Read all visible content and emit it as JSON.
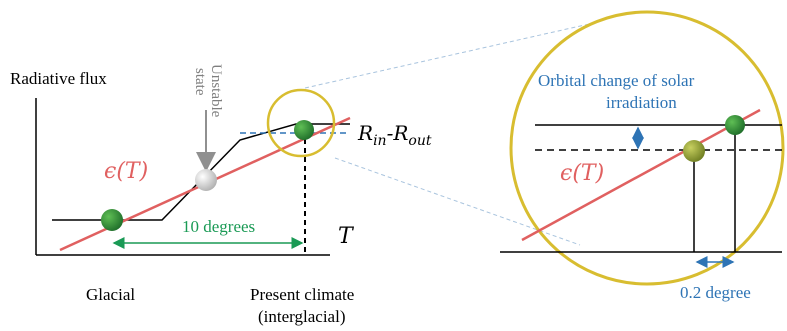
{
  "labels": {
    "y_axis": "Radiative flux",
    "x_axis": "T",
    "unstable_line1": "Unstable",
    "unstable_line2": "state",
    "epsilon_left": "ϵ(T)",
    "epsilon_right": "ϵ(T)",
    "r_in": "R",
    "r_in_sub": "in",
    "r_dash": "-R",
    "r_out_sub": "out",
    "ten_degrees": "10 degrees",
    "glacial": "Glacial",
    "present_line1": "Present climate",
    "present_line2": "(interglacial)",
    "orbital_line1": "Orbital change of solar",
    "orbital_line2": "irradiation",
    "point_two": "0.2 degree"
  },
  "colors": {
    "red_line": "#e06060",
    "green_point": "#2e8b3a",
    "olive_point": "#9aa83a",
    "grey_point": "#d8d8d8",
    "circle": "#d8bd30",
    "blue_label": "#2e74b5",
    "green_label": "#1a9a55",
    "grey_text": "#7f7f7f",
    "arrow_grey": "#909090",
    "zoom_lines": "#a9c4de"
  }
}
